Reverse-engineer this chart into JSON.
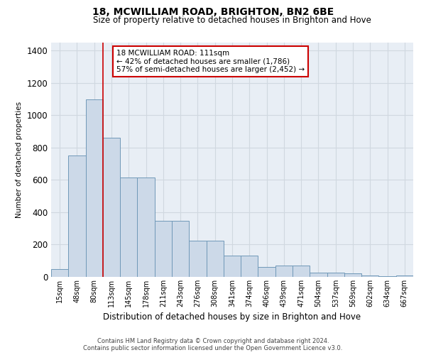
{
  "title1": "18, MCWILLIAM ROAD, BRIGHTON, BN2 6BE",
  "title2": "Size of property relative to detached houses in Brighton and Hove",
  "xlabel": "Distribution of detached houses by size in Brighton and Hove",
  "ylabel": "Number of detached properties",
  "categories": [
    "15sqm",
    "48sqm",
    "80sqm",
    "113sqm",
    "145sqm",
    "178sqm",
    "211sqm",
    "243sqm",
    "276sqm",
    "308sqm",
    "341sqm",
    "374sqm",
    "406sqm",
    "439sqm",
    "471sqm",
    "504sqm",
    "537sqm",
    "569sqm",
    "602sqm",
    "634sqm",
    "667sqm"
  ],
  "values": [
    50,
    750,
    1100,
    860,
    615,
    615,
    345,
    345,
    225,
    225,
    130,
    130,
    60,
    70,
    70,
    25,
    25,
    20,
    10,
    5,
    10
  ],
  "bar_color": "#ccd9e8",
  "bar_edge_color": "#7098b8",
  "vline_color": "#cc0000",
  "vline_pos": 2.5,
  "annotation_text_line1": "18 MCWILLIAM ROAD: 111sqm",
  "annotation_text_line2": "← 42% of detached houses are smaller (1,786)",
  "annotation_text_line3": "57% of semi-detached houses are larger (2,452) →",
  "annotation_box_color": "#ffffff",
  "annotation_box_edge": "#cc0000",
  "ylim": [
    0,
    1450
  ],
  "yticks": [
    0,
    200,
    400,
    600,
    800,
    1000,
    1200,
    1400
  ],
  "grid_color": "#d0d8e0",
  "bg_color": "#e8eef5",
  "footer1": "Contains HM Land Registry data © Crown copyright and database right 2024.",
  "footer2": "Contains public sector information licensed under the Open Government Licence v3.0."
}
